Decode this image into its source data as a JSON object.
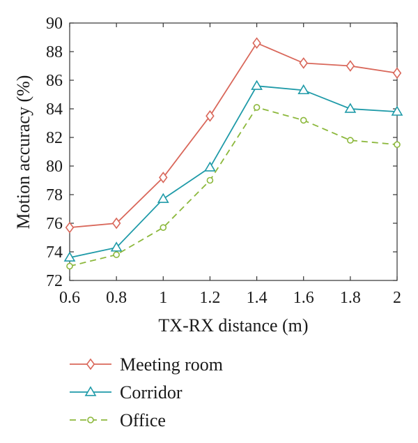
{
  "chart_data": {
    "type": "line",
    "xlabel": "TX-RX distance (m)",
    "ylabel": "Motion accuracy (%)",
    "x": [
      0.6,
      0.8,
      1.0,
      1.2,
      1.4,
      1.6,
      1.8,
      2.0
    ],
    "x_tick_labels": [
      "0.6",
      "0.8",
      "1",
      "1.2",
      "1.4",
      "1.6",
      "1.8",
      "2"
    ],
    "xlim": [
      0.6,
      2.0
    ],
    "ylim": [
      72,
      90
    ],
    "y_ticks": [
      72,
      74,
      76,
      78,
      80,
      82,
      84,
      86,
      88,
      90
    ],
    "grid": false,
    "legend_position": "below",
    "series": [
      {
        "name": "Meeting room",
        "color": "#d9675a",
        "marker": "diamond",
        "dash": "solid",
        "values": [
          75.7,
          76.0,
          79.2,
          83.5,
          88.6,
          87.2,
          87.0,
          86.5
        ]
      },
      {
        "name": "Corridor",
        "color": "#1e9aa8",
        "marker": "triangle",
        "dash": "solid",
        "values": [
          73.6,
          74.3,
          77.7,
          79.9,
          85.6,
          85.3,
          84.0,
          83.8
        ]
      },
      {
        "name": "Office",
        "color": "#8cb83c",
        "marker": "circle",
        "dash": "dashed",
        "values": [
          73.0,
          73.8,
          75.7,
          79.0,
          84.1,
          83.2,
          81.8,
          81.5
        ]
      }
    ]
  }
}
